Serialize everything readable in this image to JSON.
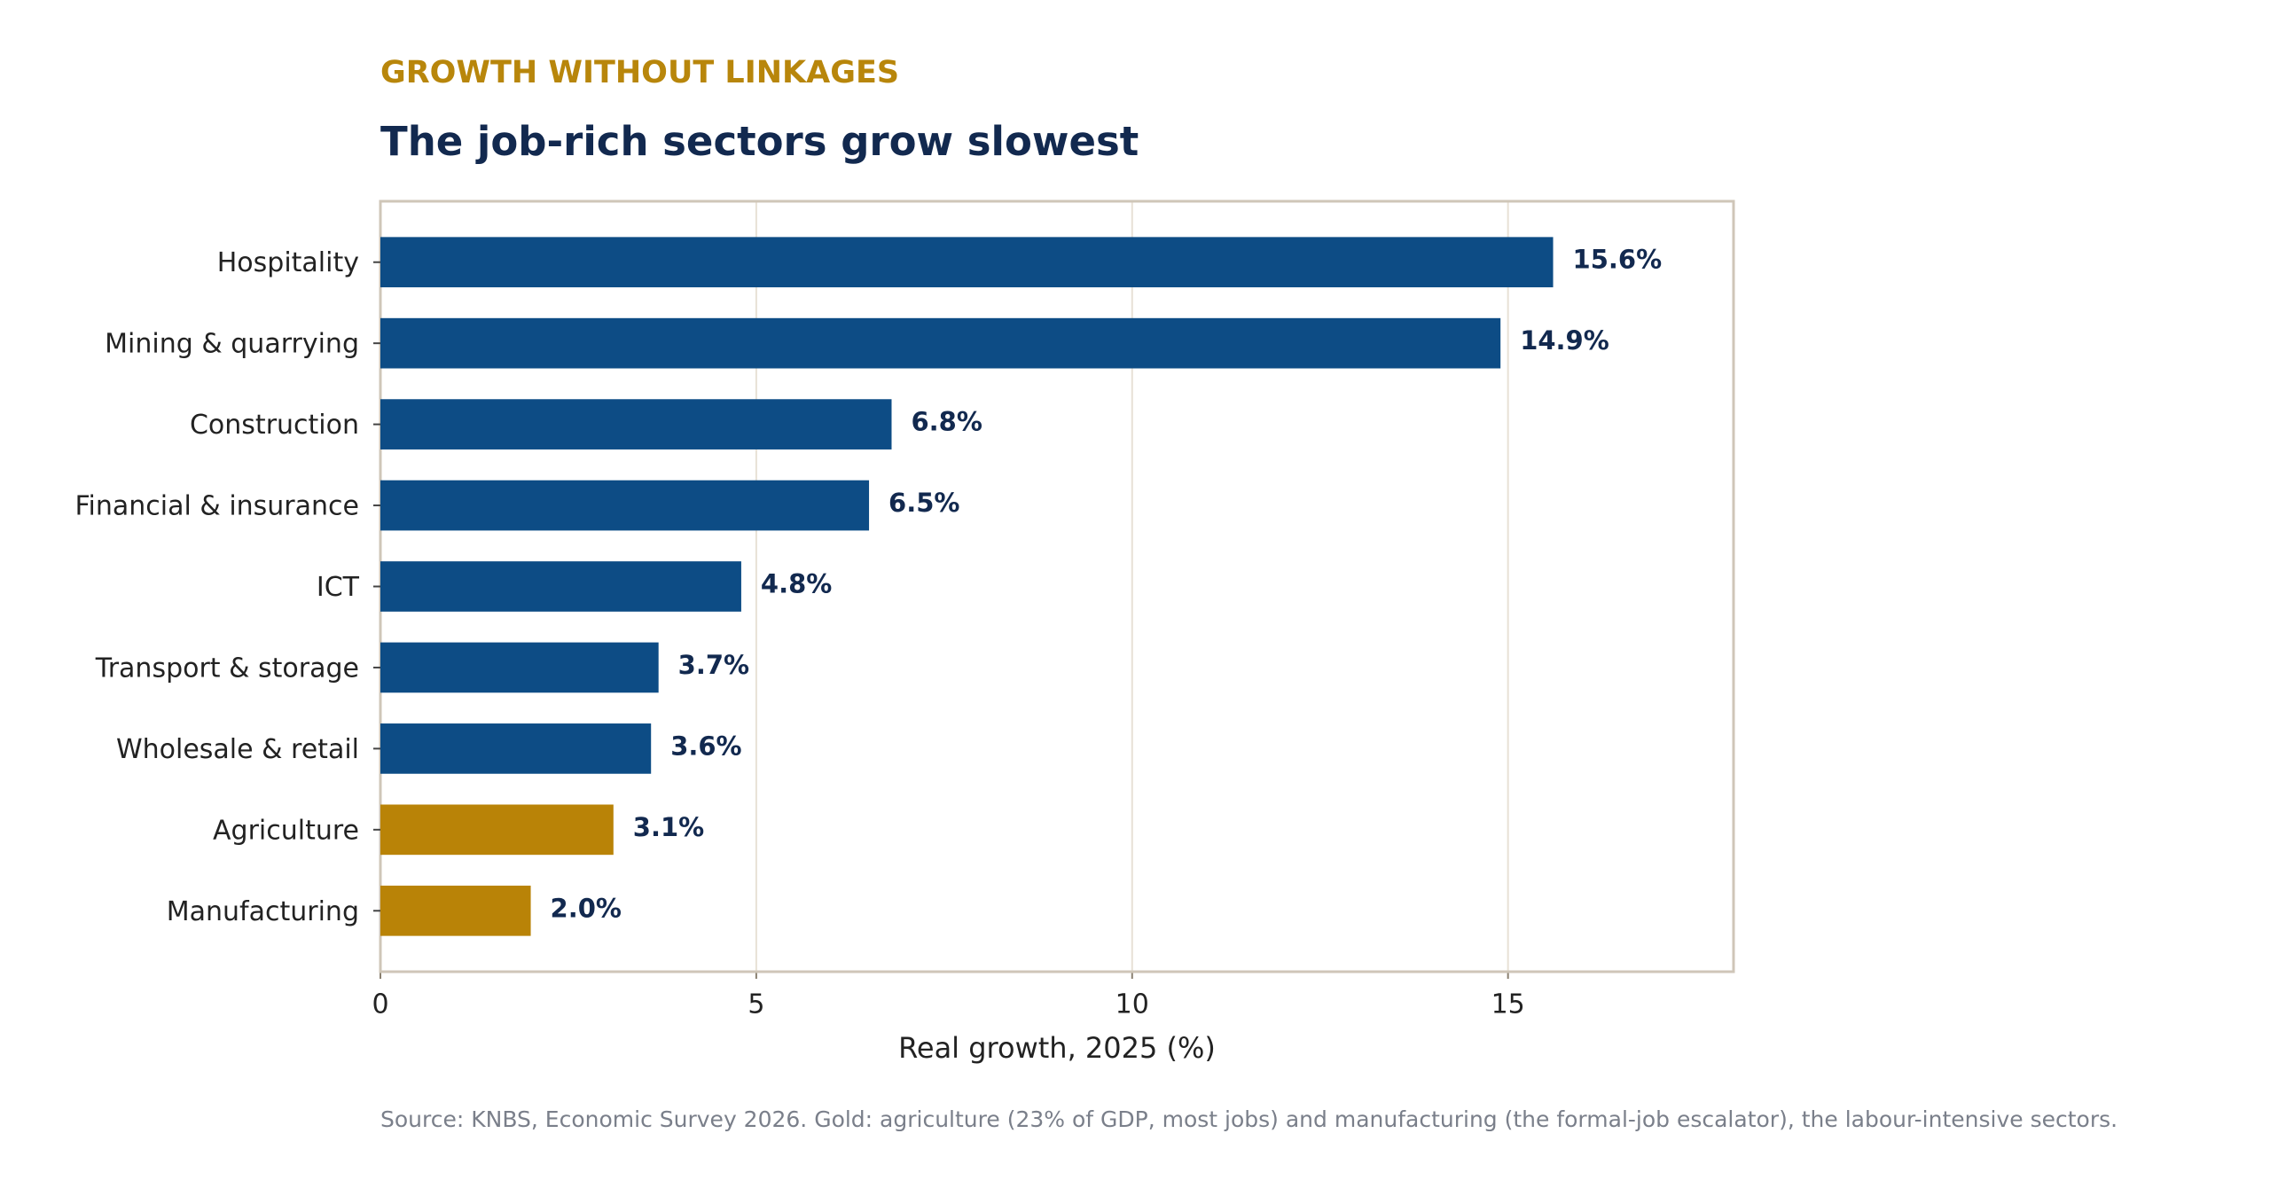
{
  "chart_data": {
    "type": "bar",
    "orientation": "horizontal",
    "kicker": "GROWTH WITHOUT LINKAGES",
    "title": "The job-rich sectors grow slowest",
    "categories": [
      "Hospitality",
      "Mining & quarrying",
      "Construction",
      "Financial & insurance",
      "ICT",
      "Transport & storage",
      "Wholesale & retail",
      "Agriculture",
      "Manufacturing"
    ],
    "values": [
      15.6,
      14.9,
      6.8,
      6.5,
      4.8,
      3.7,
      3.6,
      3.1,
      2.0
    ],
    "value_labels": [
      "15.6%",
      "14.9%",
      "6.8%",
      "6.5%",
      "4.8%",
      "3.7%",
      "3.6%",
      "3.1%",
      "2.0%"
    ],
    "colors": [
      "#0d4c85",
      "#0d4c85",
      "#0d4c85",
      "#0d4c85",
      "#0d4c85",
      "#0d4c85",
      "#0d4c85",
      "#b98307",
      "#b98307"
    ],
    "xlim": [
      0,
      18
    ],
    "xticks": [
      0,
      5,
      10,
      15
    ],
    "grid": true,
    "xlabel": "Real growth, 2025 (%)",
    "source": "Source: KNBS, Economic Survey 2026. Gold: agriculture (23% of GDP, most jobs) and manufacturing (the formal-job escalator), the labour-intensive sectors."
  }
}
